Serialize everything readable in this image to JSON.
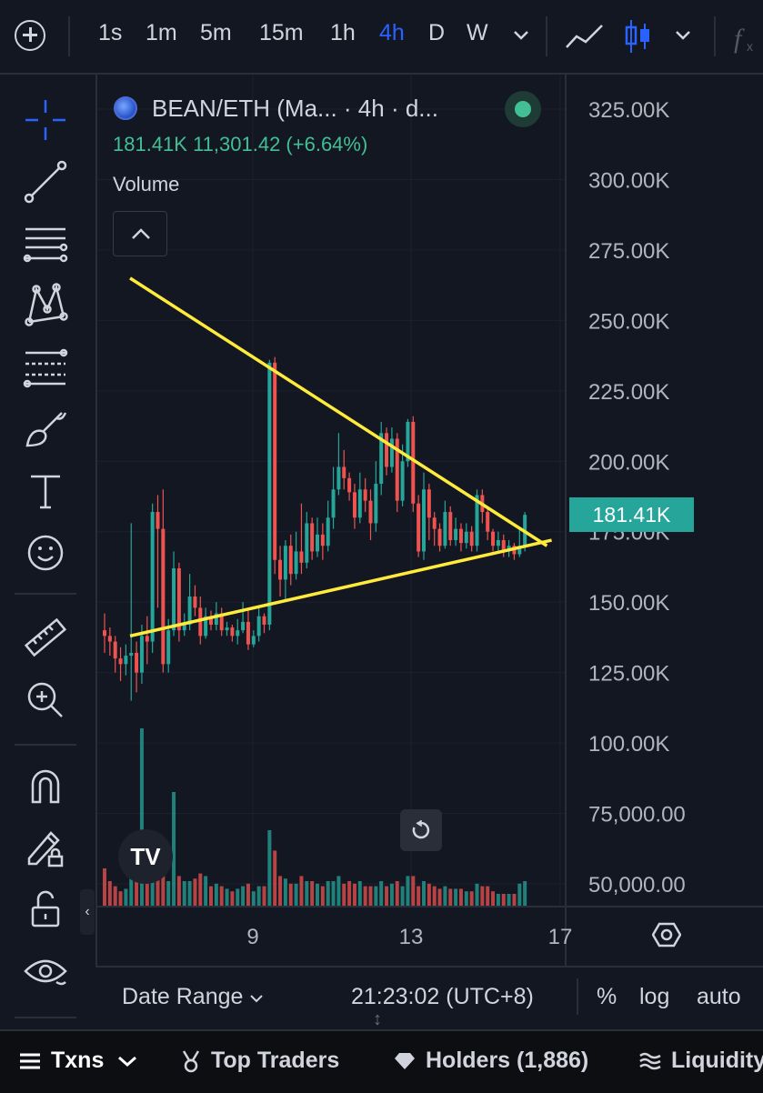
{
  "toolbar": {
    "intervals": [
      "1s",
      "1m",
      "5m",
      "15m",
      "1h",
      "4h",
      "D",
      "W"
    ],
    "active_interval": "4h",
    "icons": [
      "add-symbol-icon",
      "chevron-down-icon",
      "line-chart-icon",
      "candlestick-icon",
      "chevron-down-icon",
      "indicators-icon"
    ]
  },
  "left_tools": [
    "crosshair-icon",
    "trend-line-icon",
    "horizontal-lines-icon",
    "pattern-icon",
    "fib-icon",
    "brush-icon",
    "text-icon",
    "emoji-icon",
    "ruler-icon",
    "zoom-icon",
    "magnet-icon",
    "lock-drawing-icon",
    "unlock-icon",
    "eye-icon"
  ],
  "legend": {
    "symbol": "BEAN/ETH (Ma... · 4h · d...",
    "ohlc": "181.41K  11,301.42 (+6.64%)",
    "volume_label": "Volume"
  },
  "price_axis": {
    "labels": [
      "325.00K",
      "300.00K",
      "275.00K",
      "250.00K",
      "225.00K",
      "200.00K",
      "175.00K",
      "150.00K",
      "125.00K",
      "100.00K",
      "75,000.00",
      "50,000.00"
    ],
    "last_price": "181.41K"
  },
  "time_axis": {
    "labels": [
      "9",
      "13",
      "17"
    ]
  },
  "bottom_bar": {
    "date_range": "Date Range",
    "clock": "21:23:02 (UTC+8)",
    "percent": "%",
    "log": "log",
    "auto": "auto"
  },
  "tabs": {
    "txns": "Txns",
    "top_traders": "Top Traders",
    "holders": "Holders (1,886)",
    "liquidity": "Liquidity"
  },
  "tv_logo": "TV",
  "colors": {
    "up": "#26a69a",
    "down": "#ef5350",
    "trendline": "#ffeb3b",
    "active": "#2962ff",
    "background": "#131722"
  },
  "chart_data": {
    "type": "candlestick",
    "y_axis_range": [
      50000,
      325000
    ],
    "x_ticks": [
      "9",
      "13",
      "17"
    ],
    "last_price": 181410,
    "candles": [
      [
        140,
        138,
        146,
        132,
        0.15
      ],
      [
        138,
        136,
        141,
        131,
        0.1
      ],
      [
        136,
        130,
        138,
        125,
        0.08
      ],
      [
        130,
        128,
        134,
        122,
        0.06
      ],
      [
        128,
        131,
        135,
        124,
        0.07
      ],
      [
        131,
        132,
        178,
        115,
        0.2
      ],
      [
        132,
        125,
        136,
        118,
        0.1
      ],
      [
        125,
        138,
        142,
        121,
        0.7
      ],
      [
        138,
        136,
        145,
        128,
        0.15
      ],
      [
        136,
        182,
        185,
        132,
        0.14
      ],
      [
        182,
        176,
        188,
        148,
        0.14
      ],
      [
        176,
        128,
        190,
        125,
        0.12
      ],
      [
        128,
        140,
        144,
        125,
        0.1
      ],
      [
        140,
        162,
        168,
        138,
        0.45
      ],
      [
        162,
        140,
        164,
        136,
        0.12
      ],
      [
        140,
        142,
        146,
        138,
        0.1
      ],
      [
        142,
        152,
        160,
        140,
        0.1
      ],
      [
        152,
        148,
        156,
        145,
        0.11
      ],
      [
        148,
        138,
        152,
        135,
        0.13
      ],
      [
        138,
        145,
        148,
        137,
        0.12
      ],
      [
        145,
        142,
        147,
        140,
        0.08
      ],
      [
        142,
        146,
        150,
        140,
        0.09
      ],
      [
        146,
        140,
        148,
        138,
        0.08
      ],
      [
        140,
        141,
        143,
        138,
        0.07
      ],
      [
        141,
        138,
        142,
        136,
        0.06
      ],
      [
        138,
        140,
        144,
        135,
        0.07
      ],
      [
        140,
        143,
        150,
        139,
        0.08
      ],
      [
        143,
        135,
        147,
        133,
        0.09
      ],
      [
        135,
        138,
        140,
        134,
        0.06
      ],
      [
        138,
        145,
        148,
        136,
        0.08
      ],
      [
        145,
        142,
        146,
        139,
        0.08
      ],
      [
        142,
        235,
        236,
        140,
        0.3
      ],
      [
        235,
        165,
        237,
        160,
        0.22
      ],
      [
        165,
        158,
        170,
        152,
        0.12
      ],
      [
        158,
        170,
        172,
        150,
        0.11
      ],
      [
        170,
        160,
        174,
        156,
        0.09
      ],
      [
        160,
        168,
        175,
        158,
        0.09
      ],
      [
        168,
        164,
        185,
        160,
        0.12
      ],
      [
        164,
        178,
        182,
        162,
        0.1
      ],
      [
        178,
        168,
        180,
        165,
        0.1
      ],
      [
        168,
        174,
        180,
        166,
        0.09
      ],
      [
        174,
        170,
        178,
        165,
        0.08
      ],
      [
        170,
        180,
        186,
        168,
        0.1
      ],
      [
        180,
        190,
        198,
        176,
        0.1
      ],
      [
        190,
        198,
        210,
        188,
        0.12
      ],
      [
        198,
        194,
        204,
        190,
        0.09
      ],
      [
        194,
        189,
        196,
        186,
        0.1
      ],
      [
        189,
        180,
        192,
        176,
        0.09
      ],
      [
        180,
        190,
        196,
        178,
        0.1
      ],
      [
        190,
        186,
        194,
        182,
        0.08
      ],
      [
        186,
        178,
        190,
        172,
        0.08
      ],
      [
        178,
        192,
        200,
        175,
        0.08
      ],
      [
        192,
        210,
        214,
        188,
        0.1
      ],
      [
        210,
        198,
        212,
        195,
        0.08
      ],
      [
        198,
        208,
        212,
        196,
        0.09
      ],
      [
        208,
        186,
        210,
        182,
        0.1
      ],
      [
        186,
        200,
        206,
        184,
        0.08
      ],
      [
        200,
        214,
        215,
        198,
        0.12
      ],
      [
        214,
        185,
        216,
        182,
        0.12
      ],
      [
        185,
        168,
        188,
        166,
        0.08
      ],
      [
        168,
        190,
        196,
        165,
        0.1
      ],
      [
        190,
        180,
        192,
        172,
        0.09
      ],
      [
        180,
        176,
        182,
        170,
        0.08
      ],
      [
        176,
        170,
        178,
        168,
        0.07
      ],
      [
        170,
        182,
        186,
        169,
        0.08
      ],
      [
        182,
        172,
        184,
        170,
        0.07
      ],
      [
        172,
        176,
        180,
        170,
        0.07
      ],
      [
        176,
        171,
        178,
        168,
        0.07
      ],
      [
        171,
        175,
        178,
        169,
        0.06
      ],
      [
        175,
        170,
        177,
        168,
        0.06
      ],
      [
        170,
        188,
        190,
        168,
        0.09
      ],
      [
        188,
        182,
        190,
        178,
        0.08
      ],
      [
        182,
        175,
        184,
        172,
        0.08
      ],
      [
        175,
        170,
        176,
        168,
        0.06
      ],
      [
        170,
        172,
        175,
        168,
        0.05
      ],
      [
        172,
        168,
        174,
        166,
        0.05
      ],
      [
        168,
        170,
        172,
        166,
        0.05
      ],
      [
        170,
        167,
        171,
        165,
        0.05
      ],
      [
        167,
        170,
        176,
        166,
        0.09
      ],
      [
        170,
        181,
        182,
        168,
        0.1
      ]
    ],
    "trendlines": [
      {
        "name": "upper",
        "from": [
          0.07,
          265
        ],
        "to": [
          0.96,
          170
        ]
      },
      {
        "name": "lower",
        "from": [
          0.07,
          138
        ],
        "to": [
          0.97,
          172
        ]
      }
    ]
  }
}
